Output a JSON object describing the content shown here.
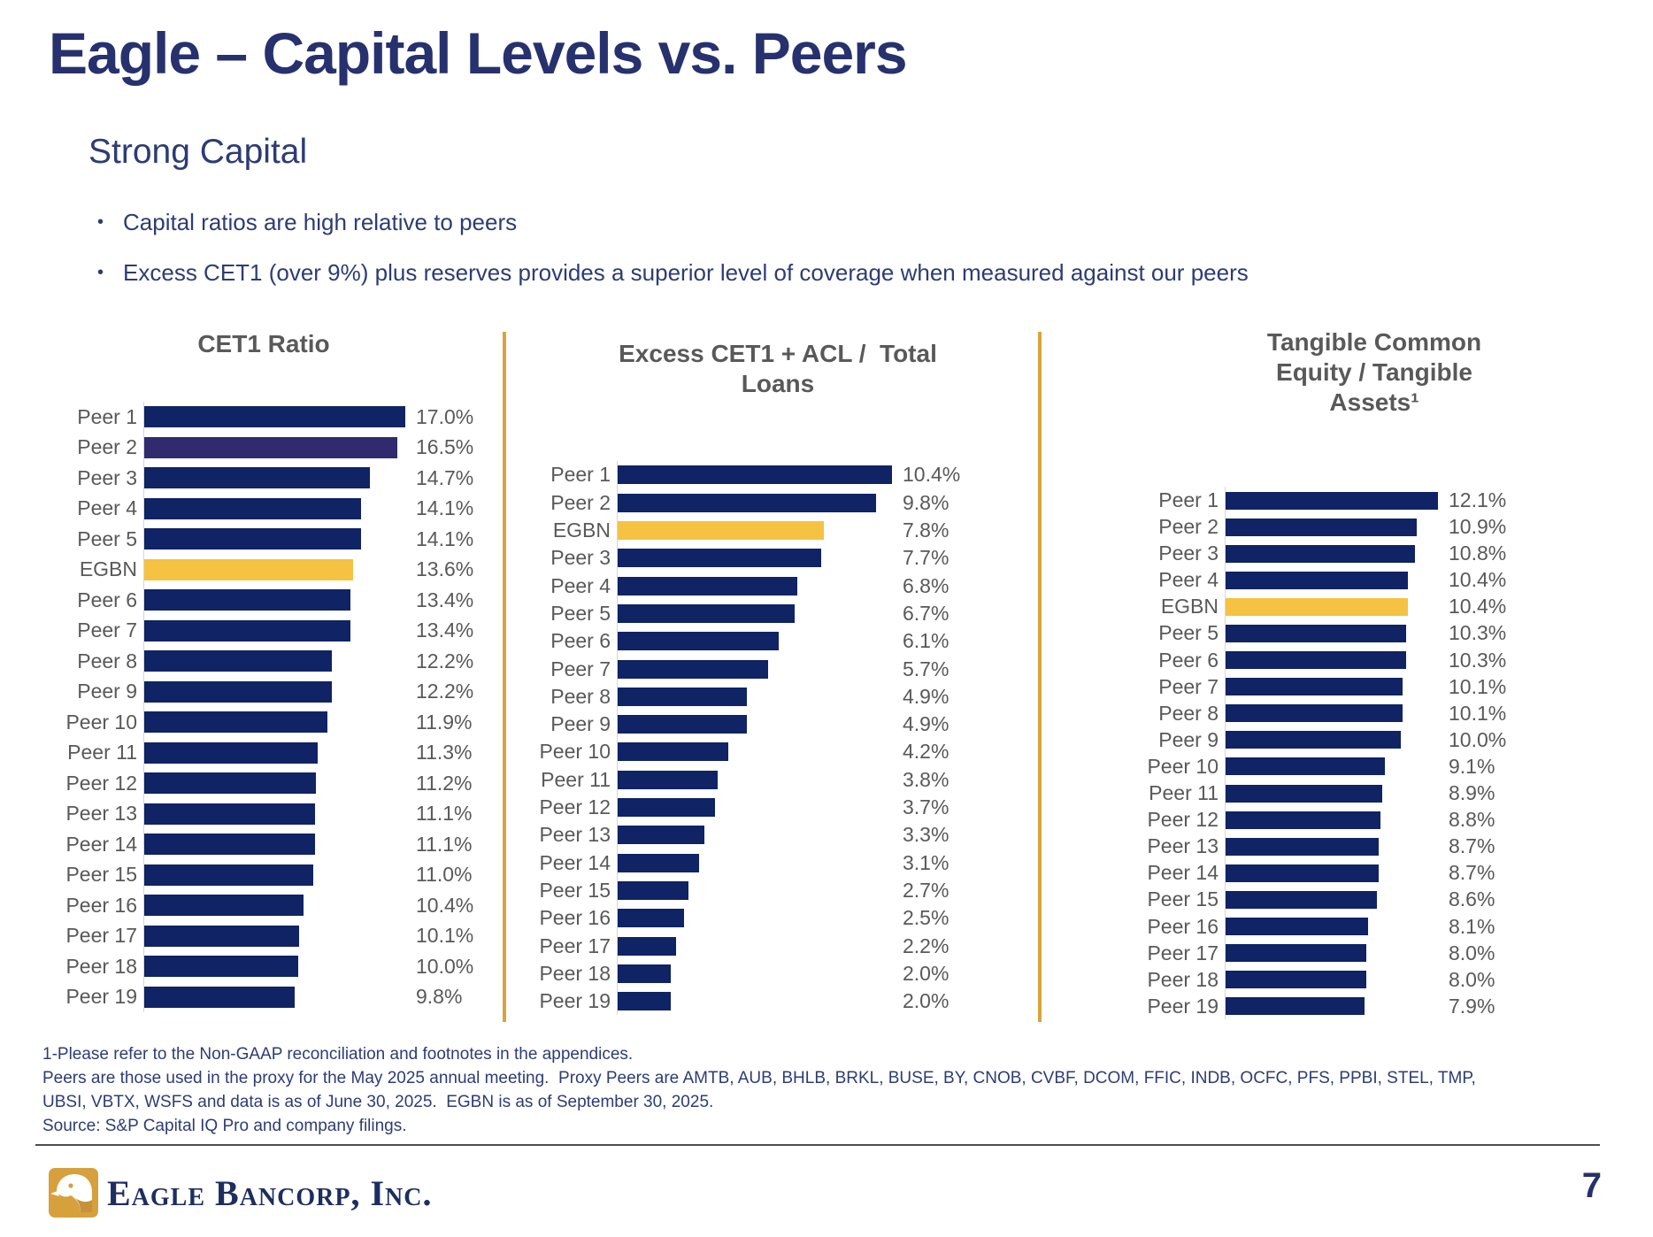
{
  "slide": {
    "title": "Eagle – Capital Levels vs. Peers",
    "subtitle": "Strong Capital",
    "bullets": [
      "Capital ratios are high relative to peers",
      "Excess CET1 (over 9%) plus reserves provides a superior level of coverage when measured against our peers"
    ],
    "page_number": "7"
  },
  "footnotes": [
    "1-Please refer to the Non-GAAP reconciliation and footnotes in the appendices.",
    "Peers are those used in the proxy for the May 2025 annual meeting.  Proxy Peers are AMTB, AUB, BHLB, BRKL, BUSE, BY, CNOB, CVBF, DCOM, FFIC, INDB, OCFC, PFS, PPBI, STEL, TMP,",
    "UBSI, VBTX, WSFS and data is as of June 30, 2025.  EGBN is as of September 30, 2025.",
    "Source: S&P Capital IQ Pro and company filings."
  ],
  "footer": {
    "logo_text": "Eagle Bancorp, Inc."
  },
  "colors": {
    "navy_bar": "#0f2365",
    "navy_bar_alt": "#2f2b6e",
    "gold_bar": "#f5c242",
    "divider_gold": "#daa33c",
    "heading_navy": "#26316d",
    "body_navy": "#2d3c74",
    "chart_gray": "#595959"
  },
  "chart_data": [
    {
      "type": "bar",
      "orientation": "horizontal",
      "title_lines": [
        "CET1 Ratio"
      ],
      "unit": "%",
      "xlim": [
        0,
        17.0
      ],
      "categories": [
        "Peer 1",
        "Peer 2",
        "Peer 3",
        "Peer 4",
        "Peer 5",
        "EGBN",
        "Peer 6",
        "Peer 7",
        "Peer 8",
        "Peer 9",
        "Peer 10",
        "Peer 11",
        "Peer 12",
        "Peer 13",
        "Peer 14",
        "Peer 15",
        "Peer 16",
        "Peer 17",
        "Peer 18",
        "Peer 19"
      ],
      "values": [
        17.0,
        16.5,
        14.7,
        14.1,
        14.1,
        13.6,
        13.4,
        13.4,
        12.2,
        12.2,
        11.9,
        11.3,
        11.2,
        11.1,
        11.1,
        11.0,
        10.4,
        10.1,
        10.0,
        9.8
      ],
      "highlight_category": "EGBN",
      "alt_color_categories": [
        "Peer 2"
      ]
    },
    {
      "type": "bar",
      "orientation": "horizontal",
      "title_lines": [
        "Excess CET1 + ACL /  Total",
        "Loans"
      ],
      "unit": "%",
      "xlim": [
        0,
        10.4
      ],
      "categories": [
        "Peer 1",
        "Peer 2",
        "EGBN",
        "Peer 3",
        "Peer 4",
        "Peer 5",
        "Peer 6",
        "Peer 7",
        "Peer 8",
        "Peer 9",
        "Peer 10",
        "Peer 11",
        "Peer 12",
        "Peer 13",
        "Peer 14",
        "Peer 15",
        "Peer 16",
        "Peer 17",
        "Peer 18",
        "Peer 19"
      ],
      "values": [
        10.4,
        9.8,
        7.8,
        7.7,
        6.8,
        6.7,
        6.1,
        5.7,
        4.9,
        4.9,
        4.2,
        3.8,
        3.7,
        3.3,
        3.1,
        2.7,
        2.5,
        2.2,
        2.0,
        2.0
      ],
      "highlight_category": "EGBN",
      "alt_color_categories": []
    },
    {
      "type": "bar",
      "orientation": "horizontal",
      "title_lines": [
        "Tangible Common",
        "Equity / Tangible",
        "Assets¹"
      ],
      "unit": "%",
      "xlim": [
        0,
        12.1
      ],
      "categories": [
        "Peer 1",
        "Peer 2",
        "Peer 3",
        "Peer 4",
        "EGBN",
        "Peer 5",
        "Peer 6",
        "Peer 7",
        "Peer 8",
        "Peer 9",
        "Peer 10",
        "Peer 11",
        "Peer 12",
        "Peer 13",
        "Peer 14",
        "Peer 15",
        "Peer 16",
        "Peer 17",
        "Peer 18",
        "Peer 19"
      ],
      "values": [
        12.1,
        10.9,
        10.8,
        10.4,
        10.4,
        10.3,
        10.3,
        10.1,
        10.1,
        10.0,
        9.1,
        8.9,
        8.8,
        8.7,
        8.7,
        8.6,
        8.1,
        8.0,
        8.0,
        7.9
      ],
      "highlight_category": "EGBN",
      "alt_color_categories": []
    }
  ]
}
